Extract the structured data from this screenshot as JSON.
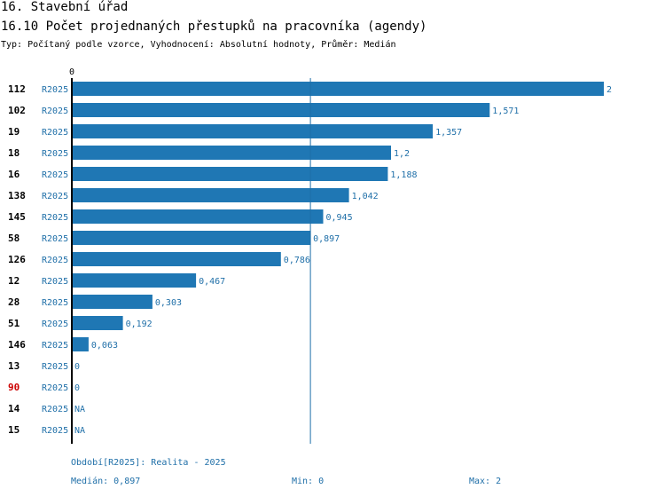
{
  "header": {
    "title": "16. Stavební úřad",
    "subtitle": "16.10 Počet projednaných přestupků na pracovníka (agendy)",
    "description": "Typ: Počítaný podle vzorce, Vyhodnocení: Absolutní hodnoty, Průměr: Medián"
  },
  "chart_data": {
    "type": "bar",
    "orientation": "horizontal",
    "series_name": "R2025",
    "x_tick_label": "0",
    "xlim": [
      0,
      2
    ],
    "median": 0.897,
    "rows": [
      {
        "id": "112",
        "series": "R2025",
        "value": 2,
        "label": "2",
        "highlight": false
      },
      {
        "id": "102",
        "series": "R2025",
        "value": 1.571,
        "label": "1,571",
        "highlight": false
      },
      {
        "id": "19",
        "series": "R2025",
        "value": 1.357,
        "label": "1,357",
        "highlight": false
      },
      {
        "id": "18",
        "series": "R2025",
        "value": 1.2,
        "label": "1,2",
        "highlight": false
      },
      {
        "id": "16",
        "series": "R2025",
        "value": 1.188,
        "label": "1,188",
        "highlight": false
      },
      {
        "id": "138",
        "series": "R2025",
        "value": 1.042,
        "label": "1,042",
        "highlight": false
      },
      {
        "id": "145",
        "series": "R2025",
        "value": 0.945,
        "label": "0,945",
        "highlight": false
      },
      {
        "id": "58",
        "series": "R2025",
        "value": 0.897,
        "label": "0,897",
        "highlight": false
      },
      {
        "id": "126",
        "series": "R2025",
        "value": 0.786,
        "label": "0,786",
        "highlight": false
      },
      {
        "id": "12",
        "series": "R2025",
        "value": 0.467,
        "label": "0,467",
        "highlight": false
      },
      {
        "id": "28",
        "series": "R2025",
        "value": 0.303,
        "label": "0,303",
        "highlight": false
      },
      {
        "id": "51",
        "series": "R2025",
        "value": 0.192,
        "label": "0,192",
        "highlight": false
      },
      {
        "id": "146",
        "series": "R2025",
        "value": 0.063,
        "label": "0,063",
        "highlight": false
      },
      {
        "id": "13",
        "series": "R2025",
        "value": 0,
        "label": "0",
        "highlight": false
      },
      {
        "id": "90",
        "series": "R2025",
        "value": 0,
        "label": "0",
        "highlight": true
      },
      {
        "id": "14",
        "series": "R2025",
        "value": null,
        "label": "NA",
        "highlight": false
      },
      {
        "id": "15",
        "series": "R2025",
        "value": null,
        "label": "NA",
        "highlight": false
      }
    ],
    "colors": {
      "bar": "#1f77b4",
      "text": "#1f6fa8",
      "highlight": "#cc0000",
      "axis": "#000000"
    }
  },
  "footer": {
    "period": "Období[R2025]: Realita - 2025",
    "median": "Medián: 0,897",
    "min": "Min: 0",
    "max": "Max: 2"
  }
}
